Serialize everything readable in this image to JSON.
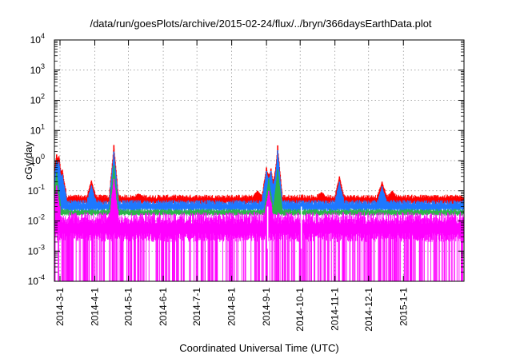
{
  "chart_data": {
    "type": "line",
    "title": "/data/run/goesPlots/archive/2015-02-24/flux/../bryn/366daysEarthData.plot",
    "xlabel": "Coordinated Universal Time (UTC)",
    "ylabel": "cGy/day",
    "y_scale": "log",
    "ylim": [
      0.0001,
      10000
    ],
    "xlim": [
      "2014-02-24",
      "2015-02-24"
    ],
    "grid": true,
    "legend": "none",
    "y_ticks": [
      {
        "value": 0.0001,
        "base": "10",
        "exp": "-4"
      },
      {
        "value": 0.001,
        "base": "10",
        "exp": "-3"
      },
      {
        "value": 0.01,
        "base": "10",
        "exp": "-2"
      },
      {
        "value": 0.1,
        "base": "10",
        "exp": "-1"
      },
      {
        "value": 1,
        "base": "10",
        "exp": "0"
      },
      {
        "value": 10,
        "base": "10",
        "exp": "1"
      },
      {
        "value": 100,
        "base": "10",
        "exp": "2"
      },
      {
        "value": 1000,
        "base": "10",
        "exp": "3"
      },
      {
        "value": 10000,
        "base": "10",
        "exp": "4"
      }
    ],
    "x_ticks": [
      {
        "date": "2014-03-01",
        "label": "2014-3-1"
      },
      {
        "date": "2014-04-01",
        "label": "2014-4-1"
      },
      {
        "date": "2014-05-01",
        "label": "2014-5-1"
      },
      {
        "date": "2014-06-01",
        "label": "2014-6-1"
      },
      {
        "date": "2014-07-01",
        "label": "2014-7-1"
      },
      {
        "date": "2014-08-01",
        "label": "2014-8-1"
      },
      {
        "date": "2014-09-01",
        "label": "2014-9-1"
      },
      {
        "date": "2014-10-01",
        "label": "2014-10-1"
      },
      {
        "date": "2014-11-01",
        "label": "2014-11-1"
      },
      {
        "date": "2014-12-01",
        "label": "2014-12-1"
      },
      {
        "date": "2015-01-01",
        "label": "2015-1-1"
      }
    ],
    "series": [
      {
        "color": "#ff0000",
        "baseline_low": 0.035,
        "baseline_high": 0.075,
        "spikes": [
          {
            "date": "2014-02-26",
            "value": 1.6
          },
          {
            "date": "2014-02-28",
            "value": 1.4
          },
          {
            "date": "2014-03-03",
            "value": 0.5
          },
          {
            "date": "2014-03-29",
            "value": 0.22
          },
          {
            "date": "2014-04-18",
            "value": 3.3
          },
          {
            "date": "2014-05-10",
            "value": 0.08
          },
          {
            "date": "2014-08-24",
            "value": 0.1
          },
          {
            "date": "2014-09-01",
            "value": 0.6
          },
          {
            "date": "2014-09-05",
            "value": 0.55
          },
          {
            "date": "2014-09-11",
            "value": 3.2
          },
          {
            "date": "2014-10-03",
            "value": 0.05
          },
          {
            "date": "2014-10-20",
            "value": 0.09
          },
          {
            "date": "2014-11-05",
            "value": 0.3
          },
          {
            "date": "2014-12-13",
            "value": 0.2
          },
          {
            "date": "2014-12-22",
            "value": 0.1
          }
        ]
      },
      {
        "color": "#1e78ff",
        "baseline_low": 0.02,
        "baseline_high": 0.05,
        "spikes": [
          {
            "date": "2014-02-26",
            "value": 1.0
          },
          {
            "date": "2014-02-28",
            "value": 0.9
          },
          {
            "date": "2014-03-03",
            "value": 0.35
          },
          {
            "date": "2014-03-29",
            "value": 0.15
          },
          {
            "date": "2014-04-18",
            "value": 2.0
          },
          {
            "date": "2014-09-01",
            "value": 0.45
          },
          {
            "date": "2014-09-05",
            "value": 0.45
          },
          {
            "date": "2014-09-11",
            "value": 2.2
          },
          {
            "date": "2014-11-05",
            "value": 0.2
          },
          {
            "date": "2014-12-13",
            "value": 0.14
          }
        ]
      },
      {
        "color": "#2db34a",
        "baseline_low": 0.015,
        "baseline_high": 0.025,
        "spikes": [
          {
            "date": "2014-02-26",
            "value": 0.4
          },
          {
            "date": "2014-04-18",
            "value": 0.7
          },
          {
            "date": "2014-09-03",
            "value": 0.25
          },
          {
            "date": "2014-09-11",
            "value": 0.5
          }
        ]
      },
      {
        "color": "#ff00ff",
        "baseline_low": 0.002,
        "baseline_high": 0.02,
        "floor": 0.0001,
        "spikes": [
          {
            "date": "2014-02-26",
            "value": 0.15
          },
          {
            "date": "2014-04-18",
            "value": 0.25
          },
          {
            "date": "2014-09-03",
            "value": 0.1
          }
        ]
      }
    ]
  }
}
